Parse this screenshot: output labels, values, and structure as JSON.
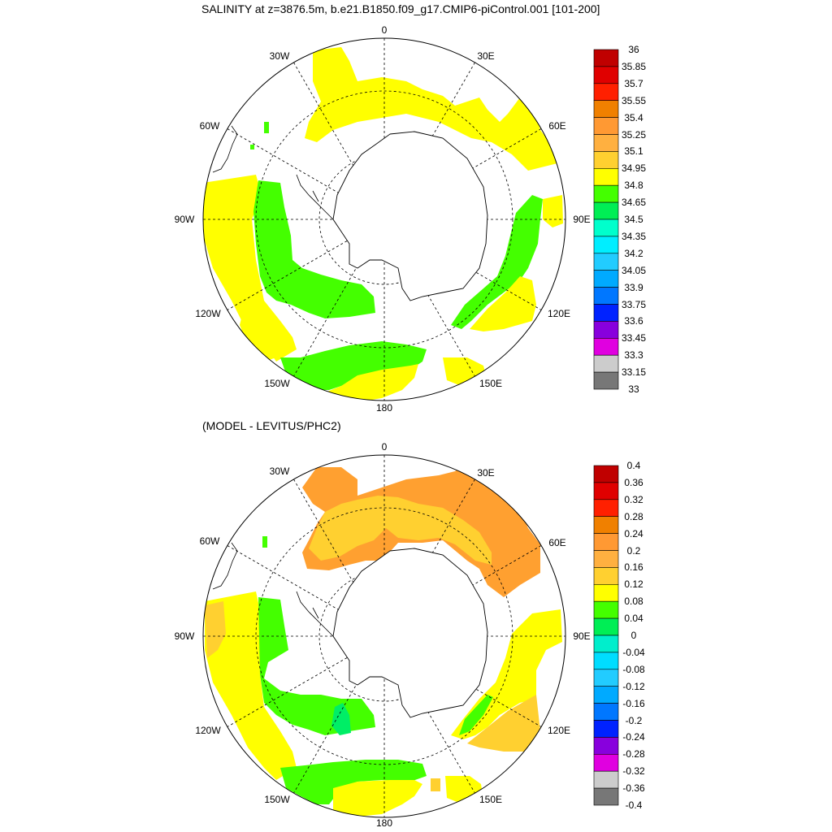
{
  "panels": [
    {
      "title": "SALINITY at z=3876.5m, b.e21.B1850.f09_g17.CMIP6-piControl.001 [101-200]",
      "colorbar": {
        "levels": [
          "36",
          "35.85",
          "35.7",
          "35.55",
          "35.4",
          "35.25",
          "35.1",
          "34.95",
          "34.8",
          "34.65",
          "34.5",
          "34.35",
          "34.2",
          "34.05",
          "33.9",
          "33.75",
          "33.6",
          "33.45",
          "33.3",
          "33.15",
          "33"
        ],
        "colors": [
          "#c00000",
          "#e00000",
          "#ff2000",
          "#f08000",
          "#ff9933",
          "#ffb040",
          "#ffd030",
          "#ffff00",
          "#44ff00",
          "#00ee55",
          "#00ffcc",
          "#00eeff",
          "#22ccff",
          "#00aaff",
          "#0077ff",
          "#0022ff",
          "#8800dd",
          "#e000e0",
          "#cccccc",
          "#777777"
        ]
      }
    },
    {
      "title": "(MODEL - LEVITUS/PHC2)",
      "colorbar": {
        "levels": [
          "0.4",
          "0.36",
          "0.32",
          "0.28",
          "0.24",
          "0.2",
          "0.16",
          "0.12",
          "0.08",
          "0.04",
          "0",
          "-0.04",
          "-0.08",
          "-0.12",
          "-0.16",
          "-0.2",
          "-0.24",
          "-0.28",
          "-0.32",
          "-0.36",
          "-0.4"
        ],
        "colors": [
          "#c00000",
          "#e00000",
          "#ff2000",
          "#f08000",
          "#ff9933",
          "#ffb040",
          "#ffd030",
          "#ffff00",
          "#44ff00",
          "#00ee55",
          "#00eecc",
          "#00ddff",
          "#22ccff",
          "#00aaff",
          "#0077ff",
          "#0022ff",
          "#8800dd",
          "#e000e0",
          "#cccccc",
          "#777777"
        ]
      }
    }
  ],
  "map_labels": {
    "lon0": "0",
    "lon30e": "30E",
    "lon60e": "60E",
    "lon90e": "90E",
    "lon120e": "120E",
    "lon150e": "150E",
    "lon180": "180",
    "lon150w": "150W",
    "lon120w": "120W",
    "lon90w": "90W",
    "lon60w": "60W",
    "lon30w": "30W"
  },
  "fill_colors": {
    "yellow": "#ffff00",
    "green": "#44ff00",
    "gold": "#ffd030",
    "orange": "#ffa030",
    "teal": "#00ee66",
    "land": "#ffffff",
    "outline": "#000000"
  }
}
